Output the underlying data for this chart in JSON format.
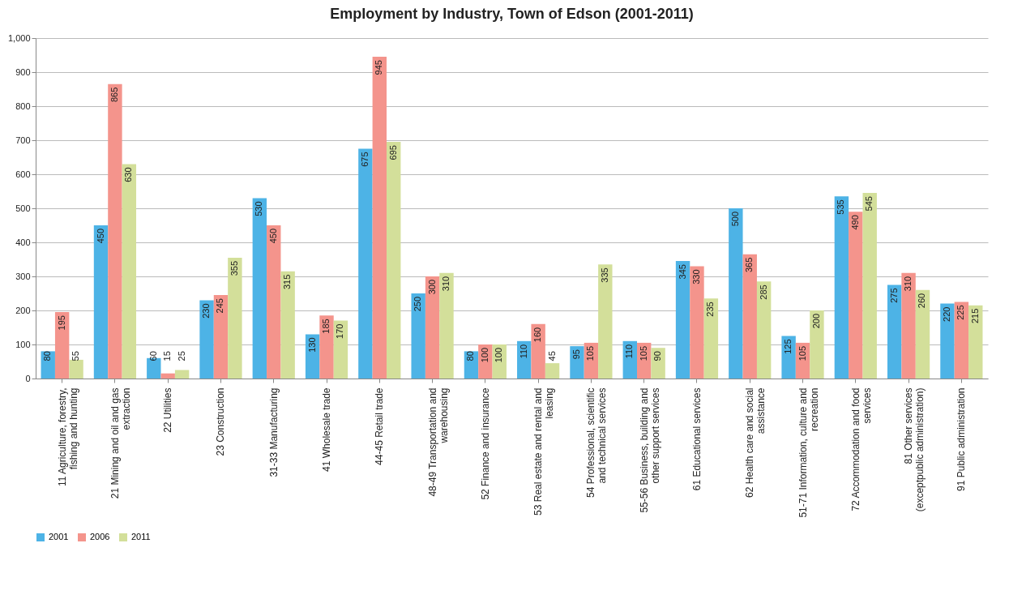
{
  "chart_data": {
    "type": "bar",
    "title": "Employment by Industry, Town of Edson (2001-2011)",
    "categories": [
      "11 Agriculture, forestry, fishing and hunting",
      "21 Mining and oil and gas extraction",
      "22 Utilities",
      "23 Construction",
      "31-33 Manufacturing",
      "41 Wholesale trade",
      "44-45 Retail trade",
      "48-49 Transportation and warehousing",
      "52 Finance and insurance",
      "53 Real estate and rental and leasing",
      "54 Professional, scientific and technical services",
      "55-56 Business, building and other support services",
      "61 Educational services",
      "62 Health care and social assistance",
      "51-71 Information, culture and recreation",
      "72 Accommodation and food services",
      "81 Other services (exceptpublic administration)",
      "91 Public administration"
    ],
    "series": [
      {
        "name": "2001",
        "color": "#4db3e6",
        "values": [
          80,
          450,
          60,
          230,
          530,
          130,
          675,
          250,
          80,
          110,
          95,
          110,
          345,
          500,
          125,
          535,
          275,
          220
        ]
      },
      {
        "name": "2006",
        "color": "#f4948c",
        "values": [
          195,
          865,
          15,
          245,
          450,
          185,
          945,
          300,
          100,
          160,
          105,
          105,
          330,
          365,
          105,
          490,
          310,
          225
        ]
      },
      {
        "name": "2011",
        "color": "#d3df9a",
        "values": [
          55,
          630,
          25,
          355,
          315,
          170,
          695,
          310,
          100,
          45,
          335,
          90,
          235,
          285,
          200,
          545,
          260,
          215
        ]
      }
    ],
    "ylim": [
      0,
      1000
    ],
    "yticks": [
      0,
      100,
      200,
      300,
      400,
      500,
      600,
      700,
      800,
      900,
      {
        "value": 1000,
        "label": "1,000"
      }
    ],
    "grid": "y",
    "legend": "bottom",
    "data_labels": true
  }
}
